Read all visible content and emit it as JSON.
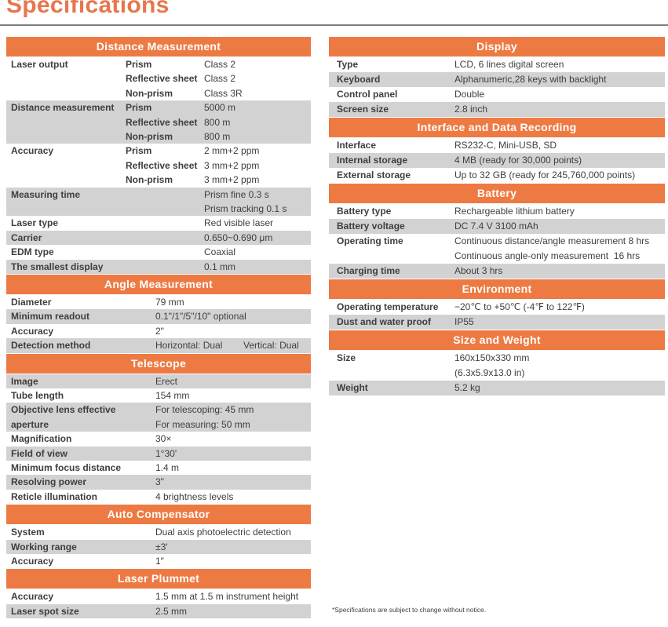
{
  "page": {
    "title": "Specifications",
    "footnote": "*Specifications are subject to change without notice.",
    "colors": {
      "accent": "#ed7a43",
      "accent_title": "#e8764d",
      "row_shade": "#d2d2d2",
      "text": "#3e3e3e",
      "rule": "#7f7f7f",
      "header_text": "#ffffff"
    }
  },
  "columns": {
    "left": [
      {
        "title": "Distance Measurement",
        "layout": "three-col",
        "rows": [
          {
            "label": "Laser output",
            "shaded": false,
            "lines": [
              {
                "sub": "Prism",
                "value": "Class 2"
              },
              {
                "sub": "Reflective sheet",
                "value": "Class 2"
              },
              {
                "sub": "Non-prism",
                "value": "Class 3R"
              }
            ]
          },
          {
            "label": "Distance measurement",
            "shaded": true,
            "lines": [
              {
                "sub": "Prism",
                "value": "5000 m"
              },
              {
                "sub": "Reflective sheet",
                "value": "800 m"
              },
              {
                "sub": "Non-prism",
                "value": "800 m"
              }
            ]
          },
          {
            "label": "Accuracy",
            "shaded": false,
            "lines": [
              {
                "sub": "Prism",
                "value": "2 mm+2 ppm"
              },
              {
                "sub": "Reflective sheet",
                "value": "3 mm+2 ppm"
              },
              {
                "sub": "Non-prism",
                "value": "3 mm+2 ppm"
              }
            ]
          },
          {
            "label": "Measuring time",
            "shaded": true,
            "lines": [
              {
                "sub": "",
                "value": "Prism fine 0.3 s"
              },
              {
                "sub": "",
                "value": "Prism tracking 0.1 s"
              }
            ]
          },
          {
            "label": "Laser type",
            "shaded": false,
            "lines": [
              {
                "sub": "",
                "value": "Red visible laser"
              }
            ]
          },
          {
            "label": "Carrier",
            "shaded": true,
            "lines": [
              {
                "sub": "",
                "value": "0.650~0.690 μm"
              }
            ]
          },
          {
            "label": "EDM type",
            "shaded": false,
            "lines": [
              {
                "sub": "",
                "value": "Coaxial"
              }
            ]
          },
          {
            "label": "The smallest display",
            "shaded": true,
            "lines": [
              {
                "sub": "",
                "value": "0.1 mm"
              }
            ]
          }
        ]
      },
      {
        "title": "Angle Measurement",
        "layout": "two-col",
        "rows": [
          {
            "label": "Diameter",
            "shaded": false,
            "lines": [
              {
                "value": "79 mm"
              }
            ]
          },
          {
            "label": "Minimum readout",
            "shaded": true,
            "lines": [
              {
                "value": "0.1\"/1\"/5\"/10\" optional"
              }
            ]
          },
          {
            "label": "Accuracy",
            "shaded": false,
            "lines": [
              {
                "value": "2\""
              }
            ]
          },
          {
            "label": "Detection method",
            "shaded": true,
            "lines": [
              {
                "value": "Horizontal: Dual        Vertical: Dual"
              }
            ]
          }
        ]
      },
      {
        "title": "Telescope",
        "layout": "two-col",
        "rows": [
          {
            "label": "Image",
            "shaded": true,
            "lines": [
              {
                "value": "Erect"
              }
            ]
          },
          {
            "label": "Tube length",
            "shaded": false,
            "lines": [
              {
                "value": "154 mm"
              }
            ]
          },
          {
            "label": "Objective lens effective aperture",
            "shaded": true,
            "lines": [
              {
                "value": "For telescoping: 45 mm"
              },
              {
                "value": "For measuring: 50 mm"
              }
            ]
          },
          {
            "label": "Magnification",
            "shaded": false,
            "lines": [
              {
                "value": "30×"
              }
            ]
          },
          {
            "label": "Field of view",
            "shaded": true,
            "lines": [
              {
                "value": "1°30'"
              }
            ]
          },
          {
            "label": "Minimum focus distance",
            "shaded": false,
            "lines": [
              {
                "value": "1.4 m"
              }
            ]
          },
          {
            "label": "Resolving power",
            "shaded": true,
            "lines": [
              {
                "value": "3\""
              }
            ]
          },
          {
            "label": "Reticle illumination",
            "shaded": false,
            "lines": [
              {
                "value": "4 brightness levels"
              }
            ]
          }
        ]
      },
      {
        "title": "Auto Compensator",
        "layout": "two-col",
        "rows": [
          {
            "label": "System",
            "shaded": false,
            "lines": [
              {
                "value": "Dual axis photoelectric detection"
              }
            ]
          },
          {
            "label": "Working range",
            "shaded": true,
            "lines": [
              {
                "value": "±3′"
              }
            ]
          },
          {
            "label": "Accuracy",
            "shaded": false,
            "lines": [
              {
                "value": "1″"
              }
            ]
          }
        ]
      },
      {
        "title": "Laser Plummet",
        "layout": "two-col",
        "rows": [
          {
            "label": "Accuracy",
            "shaded": false,
            "lines": [
              {
                "value": "1.5 mm at 1.5 m instrument height"
              }
            ]
          },
          {
            "label": "Laser spot size",
            "shaded": true,
            "lines": [
              {
                "value": "2.5 mm"
              }
            ]
          }
        ]
      }
    ],
    "right": [
      {
        "title": "Display",
        "layout": "two-col",
        "rows": [
          {
            "label": "Type",
            "shaded": false,
            "lines": [
              {
                "value": "LCD, 6 lines digital screen"
              }
            ]
          },
          {
            "label": "Keyboard",
            "shaded": true,
            "lines": [
              {
                "value": "Alphanumeric,28 keys with backlight"
              }
            ]
          },
          {
            "label": "Control panel",
            "shaded": false,
            "lines": [
              {
                "value": "Double"
              }
            ]
          },
          {
            "label": "Screen size",
            "shaded": true,
            "lines": [
              {
                "value": "2.8 inch"
              }
            ]
          }
        ]
      },
      {
        "title": "Interface and Data Recording",
        "layout": "two-col",
        "rows": [
          {
            "label": "Interface",
            "shaded": false,
            "lines": [
              {
                "value": "RS232-C, Mini-USB, SD"
              }
            ]
          },
          {
            "label": "Internal storage",
            "shaded": true,
            "lines": [
              {
                "value": "4 MB (ready for 30,000 points)"
              }
            ]
          },
          {
            "label": "External storage",
            "shaded": false,
            "lines": [
              {
                "value": "Up to 32 GB (ready for 245,760,000 points)"
              }
            ]
          }
        ]
      },
      {
        "title": "Battery",
        "layout": "two-col",
        "rows": [
          {
            "label": "Battery type",
            "shaded": false,
            "lines": [
              {
                "value": "Rechargeable lithium battery"
              }
            ]
          },
          {
            "label": "Battery voltage",
            "shaded": true,
            "lines": [
              {
                "value": "DC 7.4 V 3100 mAh"
              }
            ]
          },
          {
            "label": "Operating time",
            "shaded": false,
            "lines": [
              {
                "value": "Continuous distance/angle measurement 8 hrs"
              },
              {
                "value": "Continuous angle-only measurement  16 hrs"
              }
            ]
          },
          {
            "label": "Charging time",
            "shaded": true,
            "lines": [
              {
                "value": "About 3 hrs"
              }
            ]
          }
        ]
      },
      {
        "title": "Environment",
        "layout": "two-col",
        "rows": [
          {
            "label": "Operating temperature",
            "shaded": false,
            "lines": [
              {
                "value": "−20℃ to +50℃ (-4℉ to 122℉)"
              }
            ]
          },
          {
            "label": "Dust and water proof",
            "shaded": true,
            "lines": [
              {
                "value": "IP55"
              }
            ]
          }
        ]
      },
      {
        "title": "Size and Weight",
        "layout": "two-col",
        "rows": [
          {
            "label": "Size",
            "shaded": false,
            "lines": [
              {
                "value": "160x150x330 mm"
              },
              {
                "value": "(6.3x5.9x13.0 in)"
              }
            ]
          },
          {
            "label": "Weight",
            "shaded": true,
            "lines": [
              {
                "value": "5.2 kg"
              }
            ]
          }
        ]
      }
    ]
  }
}
